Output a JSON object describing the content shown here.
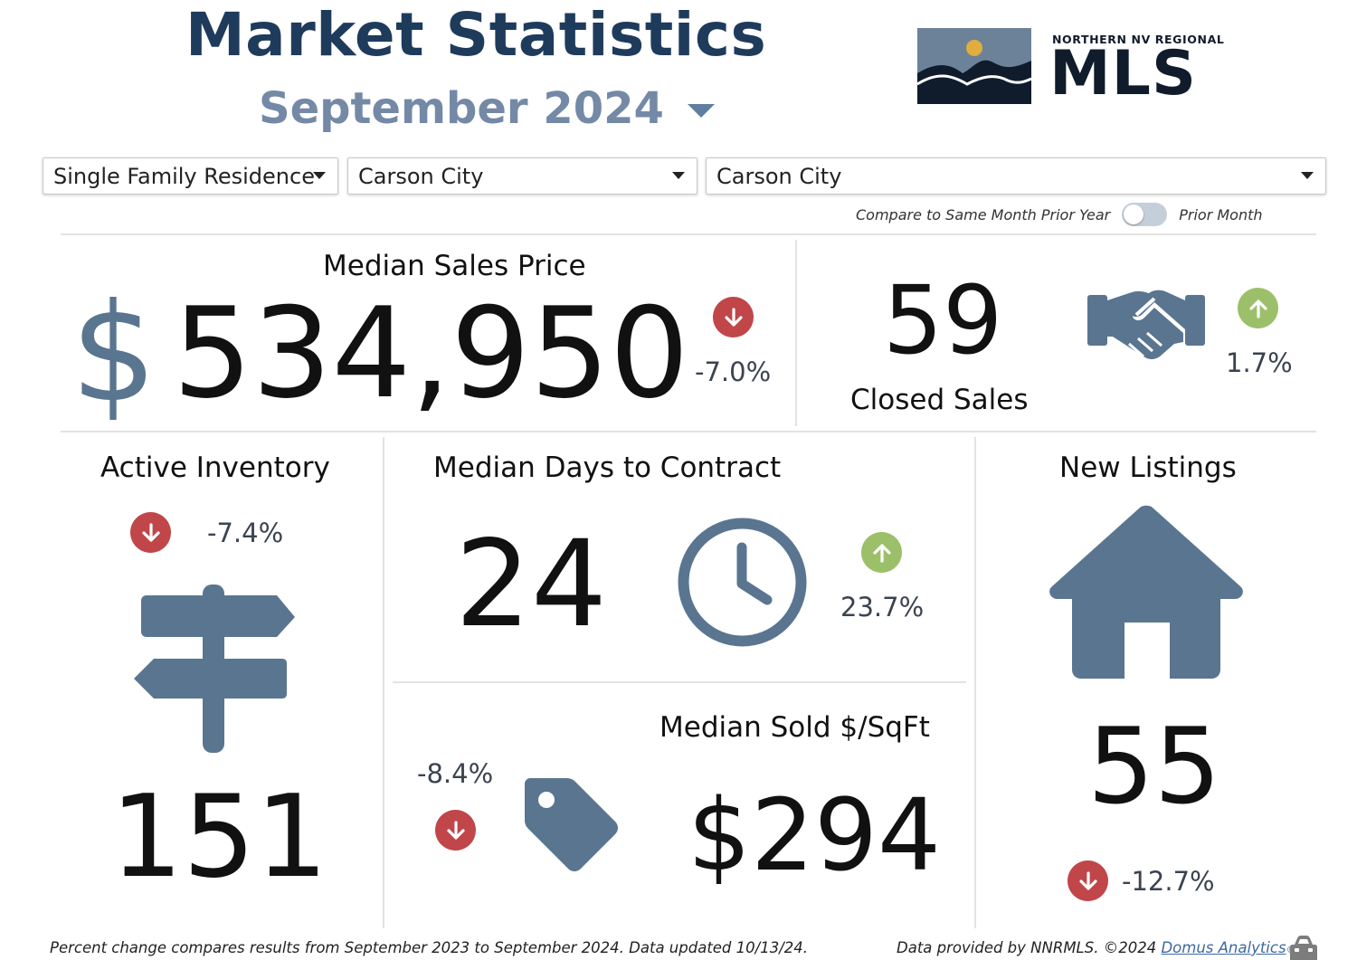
{
  "header": {
    "title": "Market Statistics",
    "month": "September 2024",
    "logo_small": "NORTHERN NV REGIONAL",
    "logo_big": "MLS"
  },
  "filters": {
    "property_type": "Single Family Residence",
    "area": "Carson City",
    "subarea": "Carson City"
  },
  "compare_toggle": {
    "left_label": "Compare to Same Month Prior Year",
    "right_label": "Prior Month",
    "state": "off"
  },
  "metrics": {
    "median_sales_price": {
      "label": "Median Sales Price",
      "currency_symbol": "$",
      "value": "534,950",
      "change": "-7.0%",
      "direction": "down"
    },
    "closed_sales": {
      "label": "Closed Sales",
      "value": "59",
      "change": "1.7%",
      "direction": "up",
      "icon": "handshake-icon"
    },
    "active_inventory": {
      "label": "Active Inventory",
      "value": "151",
      "change": "-7.4%",
      "direction": "down",
      "icon": "signpost-icon"
    },
    "median_days_to_contract": {
      "label": "Median Days to Contract",
      "value": "24",
      "change": "23.7%",
      "direction": "up",
      "icon": "clock-icon"
    },
    "median_sold_sqft": {
      "label": "Median Sold $/SqFt",
      "value": "$294",
      "change": "-8.4%",
      "direction": "down",
      "icon": "price-tag-icon"
    },
    "new_listings": {
      "label": "New Listings",
      "value": "55",
      "change": "-12.7%",
      "direction": "down",
      "icon": "house-icon"
    }
  },
  "colors": {
    "title": "#1f3b5c",
    "subtitle": "#7489a6",
    "icon": "#5a7590",
    "down": "#c0464a",
    "up": "#9cc06a",
    "link": "#3d6aa1"
  },
  "footer": {
    "note": "Percent change compares results from September 2023 to September 2024.  Data updated 10/13/24.",
    "credit": "Data provided by NNRMLS. ©2024 ",
    "link_text": "Domus Analytics",
    "registered": "®"
  }
}
